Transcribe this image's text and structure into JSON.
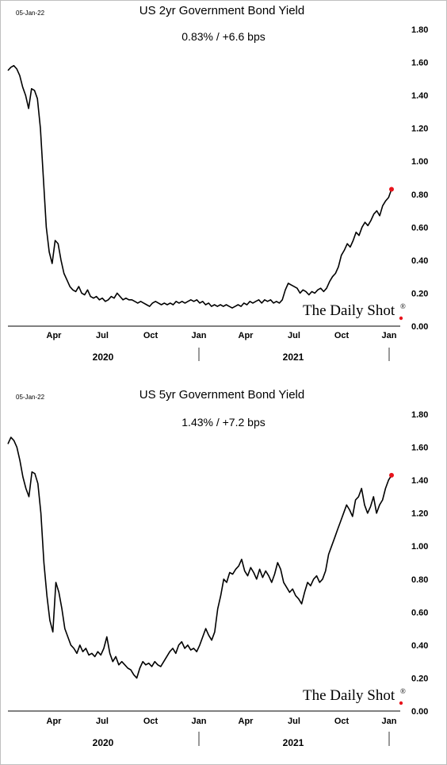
{
  "chart_data": [
    {
      "type": "line",
      "date_label": "05-Jan-22",
      "title": "US 2yr Government Bond Yield",
      "subtitle": "0.83%  /  +6.6 bps",
      "ylim": [
        0,
        1.8
      ],
      "y_ticks": [
        "1.80",
        "1.60",
        "1.40",
        "1.20",
        "1.00",
        "0.80",
        "0.60",
        "0.40",
        "0.20",
        "0.00"
      ],
      "x_ticks": [
        "Apr",
        "Jul",
        "Oct",
        "Jan",
        "Apr",
        "Jul",
        "Oct",
        "Jan"
      ],
      "years": [
        "2020",
        "2021"
      ],
      "brand": "The Daily Shot",
      "brand_mark": "®",
      "series": [
        {
          "values": [
            1.55,
            1.57,
            1.58,
            1.56,
            1.52,
            1.45,
            1.4,
            1.32,
            1.44,
            1.43,
            1.38,
            1.2,
            0.9,
            0.6,
            0.45,
            0.38,
            0.52,
            0.5,
            0.4,
            0.32,
            0.28,
            0.24,
            0.22,
            0.21,
            0.24,
            0.2,
            0.19,
            0.22,
            0.18,
            0.17,
            0.18,
            0.16,
            0.17,
            0.15,
            0.16,
            0.18,
            0.17,
            0.2,
            0.18,
            0.16,
            0.17,
            0.16,
            0.16,
            0.15,
            0.14,
            0.15,
            0.14,
            0.13,
            0.12,
            0.14,
            0.15,
            0.14,
            0.13,
            0.14,
            0.13,
            0.14,
            0.13,
            0.15,
            0.14,
            0.15,
            0.14,
            0.15,
            0.16,
            0.15,
            0.16,
            0.14,
            0.15,
            0.13,
            0.14,
            0.12,
            0.13,
            0.12,
            0.13,
            0.12,
            0.13,
            0.12,
            0.11,
            0.12,
            0.13,
            0.12,
            0.14,
            0.13,
            0.15,
            0.14,
            0.15,
            0.16,
            0.14,
            0.16,
            0.15,
            0.16,
            0.14,
            0.15,
            0.14,
            0.16,
            0.22,
            0.26,
            0.25,
            0.24,
            0.23,
            0.2,
            0.22,
            0.21,
            0.19,
            0.21,
            0.2,
            0.22,
            0.23,
            0.21,
            0.23,
            0.27,
            0.3,
            0.32,
            0.36,
            0.43,
            0.46,
            0.5,
            0.48,
            0.52,
            0.57,
            0.55,
            0.6,
            0.63,
            0.61,
            0.64,
            0.68,
            0.7,
            0.67,
            0.73,
            0.76,
            0.78,
            0.83
          ]
        }
      ],
      "end_value": 0.83,
      "marker_color": "#e8141c"
    },
    {
      "type": "line",
      "date_label": "05-Jan-22",
      "title": "US 5yr Government Bond Yield",
      "subtitle": "1.43%  /  +7.2 bps",
      "ylim": [
        0,
        1.8
      ],
      "y_ticks": [
        "1.80",
        "1.60",
        "1.40",
        "1.20",
        "1.00",
        "0.80",
        "0.60",
        "0.40",
        "0.20",
        "0.00"
      ],
      "x_ticks": [
        "Apr",
        "Jul",
        "Oct",
        "Jan",
        "Apr",
        "Jul",
        "Oct",
        "Jan"
      ],
      "years": [
        "2020",
        "2021"
      ],
      "brand": "The Daily Shot",
      "brand_mark": "®",
      "series": [
        {
          "values": [
            1.62,
            1.66,
            1.64,
            1.6,
            1.52,
            1.42,
            1.35,
            1.3,
            1.45,
            1.44,
            1.38,
            1.2,
            0.9,
            0.7,
            0.55,
            0.48,
            0.78,
            0.72,
            0.62,
            0.5,
            0.45,
            0.4,
            0.38,
            0.35,
            0.4,
            0.36,
            0.38,
            0.34,
            0.35,
            0.33,
            0.36,
            0.34,
            0.38,
            0.45,
            0.35,
            0.3,
            0.33,
            0.28,
            0.3,
            0.28,
            0.26,
            0.25,
            0.22,
            0.2,
            0.26,
            0.3,
            0.28,
            0.29,
            0.27,
            0.3,
            0.28,
            0.27,
            0.3,
            0.33,
            0.36,
            0.38,
            0.35,
            0.4,
            0.42,
            0.38,
            0.4,
            0.37,
            0.38,
            0.36,
            0.4,
            0.45,
            0.5,
            0.46,
            0.43,
            0.48,
            0.62,
            0.7,
            0.8,
            0.78,
            0.84,
            0.83,
            0.86,
            0.88,
            0.92,
            0.85,
            0.82,
            0.87,
            0.84,
            0.8,
            0.86,
            0.81,
            0.85,
            0.82,
            0.78,
            0.83,
            0.9,
            0.86,
            0.78,
            0.75,
            0.72,
            0.74,
            0.7,
            0.68,
            0.65,
            0.72,
            0.78,
            0.76,
            0.8,
            0.82,
            0.78,
            0.8,
            0.85,
            0.95,
            1.0,
            1.05,
            1.1,
            1.15,
            1.2,
            1.25,
            1.22,
            1.18,
            1.28,
            1.3,
            1.35,
            1.25,
            1.2,
            1.24,
            1.3,
            1.2,
            1.25,
            1.28,
            1.35,
            1.4,
            1.43
          ]
        }
      ],
      "end_value": 1.43,
      "marker_color": "#e8141c"
    }
  ]
}
